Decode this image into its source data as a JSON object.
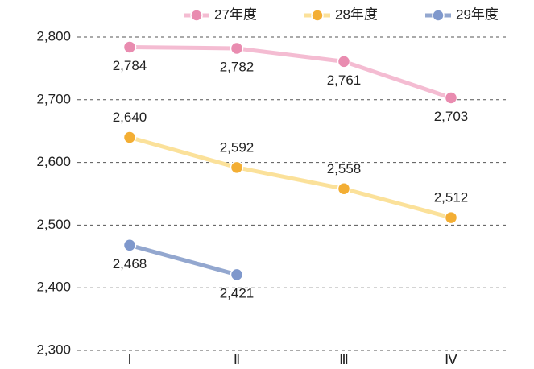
{
  "chart_data": {
    "type": "line",
    "categories": [
      "Ⅰ",
      "Ⅱ",
      "Ⅲ",
      "Ⅳ"
    ],
    "series": [
      {
        "name": "27年度",
        "color": "#f4bcd2",
        "marker_color": "#e98cb0",
        "label_side": "below",
        "values": [
          2784,
          2782,
          2761,
          2703
        ],
        "value_labels": [
          "2,784",
          "2,782",
          "2,761",
          "2,703"
        ]
      },
      {
        "name": "28年度",
        "color": "#fbe19a",
        "marker_color": "#f3ae34",
        "label_side": "above",
        "values": [
          2640,
          2592,
          2558,
          2512
        ],
        "value_labels": [
          "2,640",
          "2,592",
          "2,558",
          "2,512"
        ]
      },
      {
        "name": "29年度",
        "color": "#93a7cf",
        "marker_color": "#7f98cc",
        "label_side": "below",
        "values": [
          2468,
          2421,
          null,
          null
        ],
        "value_labels": [
          "2,468",
          "2,421",
          null,
          null
        ]
      }
    ],
    "ylim": [
      2300,
      2800
    ],
    "yticks": [
      {
        "value": 2300,
        "label": "2,300"
      },
      {
        "value": 2400,
        "label": "2,400"
      },
      {
        "value": 2500,
        "label": "2,500"
      },
      {
        "value": 2600,
        "label": "2,600"
      },
      {
        "value": 2700,
        "label": "2,700"
      },
      {
        "value": 2800,
        "label": "2,800"
      }
    ],
    "grid": true,
    "legend": "top"
  }
}
